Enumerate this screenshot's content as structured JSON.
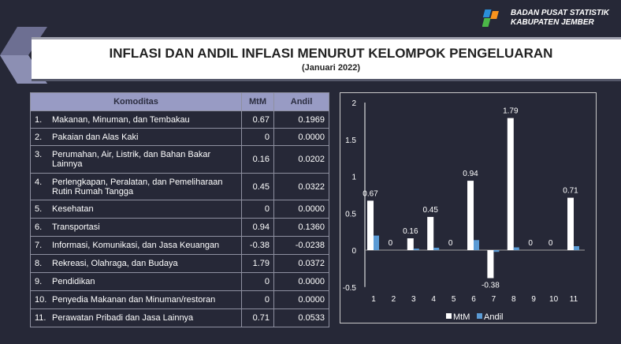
{
  "header": {
    "org_line1": "BADAN PUSAT STATISTIK",
    "org_line2": "KABUPATEN JEMBER",
    "title": "INFLASI DAN ANDIL INFLASI MENURUT KELOMPOK PENGELUARAN",
    "subtitle": "(Januari 2022)"
  },
  "table": {
    "columns": [
      "Komoditas",
      "MtM",
      "Andil"
    ],
    "rows": [
      {
        "no": "1.",
        "name": "Makanan, Minuman, dan Tembakau",
        "mtm": "0.67",
        "andil": "0.1969"
      },
      {
        "no": "2.",
        "name": "Pakaian dan Alas Kaki",
        "mtm": "0",
        "andil": "0.0000"
      },
      {
        "no": "3.",
        "name": "Perumahan, Air, Listrik, dan Bahan Bakar Lainnya",
        "mtm": "0.16",
        "andil": "0.0202"
      },
      {
        "no": "4.",
        "name": "Perlengkapan, Peralatan, dan Pemeliharaan Rutin Rumah Tangga",
        "mtm": "0.45",
        "andil": "0.0322"
      },
      {
        "no": "5.",
        "name": "Kesehatan",
        "mtm": "0",
        "andil": "0.0000"
      },
      {
        "no": "6.",
        "name": "Transportasi",
        "mtm": "0.94",
        "andil": "0.1360"
      },
      {
        "no": "7.",
        "name": "Informasi, Komunikasi, dan Jasa Keuangan",
        "mtm": "-0.38",
        "andil": "-0.0238"
      },
      {
        "no": "8.",
        "name": "Rekreasi, Olahraga, dan Budaya",
        "mtm": "1.79",
        "andil": "0.0372"
      },
      {
        "no": "9.",
        "name": "Pendidikan",
        "mtm": "0",
        "andil": "0.0000"
      },
      {
        "no": "10.",
        "name": "Penyedia Makanan dan Minuman/restoran",
        "mtm": "0",
        "andil": "0.0000"
      },
      {
        "no": "11.",
        "name": "Perawatan Pribadi dan Jasa Lainnya",
        "mtm": "0.71",
        "andil": "0.0533"
      }
    ]
  },
  "chart_data": {
    "type": "bar",
    "categories": [
      "1",
      "2",
      "3",
      "4",
      "5",
      "6",
      "7",
      "8",
      "9",
      "10",
      "11"
    ],
    "series": [
      {
        "name": "MtM",
        "values": [
          0.67,
          0,
          0.16,
          0.45,
          0,
          0.94,
          -0.38,
          1.79,
          0,
          0,
          0.71
        ],
        "color": "#ffffff",
        "labels": [
          "0.67",
          "0",
          "0.16",
          "0.45",
          "0",
          "0.94",
          "-0.38",
          "1.79",
          "0",
          "0",
          "0.71"
        ]
      },
      {
        "name": "Andil",
        "values": [
          0.1969,
          0,
          0.0202,
          0.0322,
          0,
          0.136,
          -0.0238,
          0.0372,
          0,
          0,
          0.0533
        ],
        "color": "#5b9bd5"
      }
    ],
    "yticks": [
      "2",
      "1.5",
      "1",
      "0.5",
      "0",
      "-0.5"
    ],
    "ylim": [
      -0.5,
      2
    ],
    "legend": "bottom",
    "grid": false
  }
}
